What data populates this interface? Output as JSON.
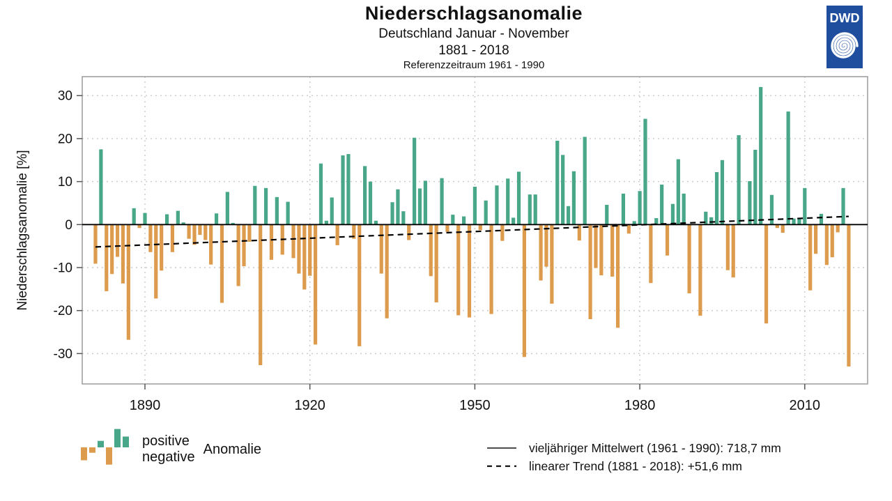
{
  "header": {
    "title": "Niederschlagsanomalie",
    "subtitle1": "Deutschland Januar - November",
    "subtitle2": "1881 - 2018",
    "subtitle3": "Referenzzeitraum 1961 - 1990"
  },
  "logo": {
    "text": "DWD",
    "color": "#1f4e9e",
    "icon": "spiral-icon"
  },
  "legend": {
    "positive_label": "positive",
    "negative_label": "negative",
    "anomaly_label": "Anomalie",
    "mean_line_label": "vieljähriger Mittelwert (1961 - 1990): 718,7 mm",
    "trend_line_label": "linearer Trend (1881 - 2018): +51,6 mm",
    "icon_values": [
      -12,
      -5,
      6,
      -16,
      17,
      10
    ]
  },
  "chart_data": {
    "type": "bar",
    "title": "Niederschlagsanomalie",
    "subtitle": "Deutschland Januar - November 1881 - 2018, Referenzzeitraum 1961 - 1990",
    "ylabel": "Niederschlagsanomalie [%]",
    "xlabel": "",
    "ylim": [
      -37,
      34.5
    ],
    "yticks": [
      30,
      20,
      10,
      0,
      -10,
      -20,
      -30
    ],
    "xticks": [
      1890,
      1920,
      1950,
      1980,
      2010
    ],
    "grid": "dotted",
    "legend_position": "bottom",
    "x_start": 1881,
    "x_step": 1,
    "values": [
      -9.1,
      17.5,
      -15.5,
      -11.5,
      -7.5,
      -13.7,
      -26.8,
      3.8,
      -0.8,
      2.7,
      -6.4,
      -17.2,
      -10.7,
      2.4,
      -6.4,
      3.2,
      0.5,
      -3.3,
      -4.7,
      -2.4,
      -3.6,
      -9.3,
      2.6,
      -18.2,
      7.6,
      0.4,
      -14.3,
      -9.7,
      -4.0,
      9.0,
      -32.7,
      8.5,
      -8.2,
      6.4,
      -7.0,
      5.3,
      -7.8,
      -11.4,
      -15.1,
      -11.9,
      -27.9,
      14.2,
      0.9,
      6.3,
      -4.8,
      16.1,
      16.4,
      -3.3,
      -28.3,
      13.6,
      10.0,
      0.9,
      -11.4,
      -21.8,
      5.2,
      8.2,
      3.1,
      -3.6,
      20.2,
      8.4,
      10.2,
      -12.0,
      -18.1,
      10.8,
      -1.7,
      2.3,
      -21.1,
      1.9,
      -21.6,
      8.8,
      -1.3,
      5.6,
      -20.8,
      9.1,
      -3.8,
      10.7,
      1.6,
      12.3,
      -30.8,
      7.0,
      7.0,
      -13.0,
      -9.8,
      -18.4,
      19.5,
      16.2,
      4.3,
      12.4,
      -3.7,
      20.4,
      -22.0,
      -10.1,
      -11.8,
      4.6,
      -12.1,
      -24.0,
      7.2,
      -2.1,
      0.8,
      7.8,
      24.6,
      -13.6,
      1.5,
      9.3,
      -7.2,
      4.8,
      15.2,
      7.2,
      -16.0,
      0.0,
      -21.2,
      3.0,
      1.7,
      12.2,
      15.0,
      -10.6,
      -12.3,
      20.8,
      0.0,
      10.1,
      17.4,
      32.0,
      -23.0,
      6.9,
      -0.8,
      -1.9,
      26.3,
      1.4,
      1.3,
      8.5,
      -15.3,
      -6.8,
      2.5,
      -9.4,
      -7.6,
      -1.8,
      8.5,
      -33.0
    ],
    "trend": {
      "start_year": 1881,
      "start_value": -5.2,
      "end_year": 2018,
      "end_value": 1.9
    },
    "colors": {
      "positive": "#48a689",
      "negative": "#dd9c4d",
      "grid": "#c9c9c9",
      "border": "#9a9a9a",
      "text": "#111111"
    }
  }
}
